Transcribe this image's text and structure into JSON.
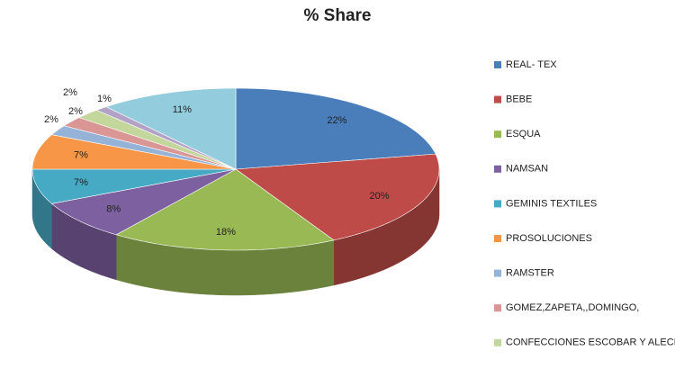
{
  "chart_data": {
    "type": "pie",
    "title": "% Share",
    "categories": [
      "REAL- TEX",
      "BEBE",
      "ESQUA",
      "NAMSAN",
      "GEMINIS  TEXTILES",
      "PROSOLUCIONES",
      "RAMSTER",
      "GOMEZ,ZAPETA,,DOMINGO,",
      "CONFECCIONES  ESCOBAR  Y ALECIO",
      null,
      null
    ],
    "values": [
      22,
      20,
      18,
      8,
      7,
      7,
      2,
      2,
      2,
      1,
      11
    ],
    "value_labels": [
      "22%",
      "20%",
      "18%",
      "8%",
      "7%",
      "7%",
      "2%",
      "2%",
      "2%",
      "1%",
      "11%"
    ],
    "colors": [
      "#4a7ebb",
      "#be4b48",
      "#98b954",
      "#7d60a0",
      "#46aac4",
      "#f79646",
      "#95b3d7",
      "#d99694",
      "#c3d69b",
      "#b3a2c7",
      "#93cddd"
    ]
  }
}
